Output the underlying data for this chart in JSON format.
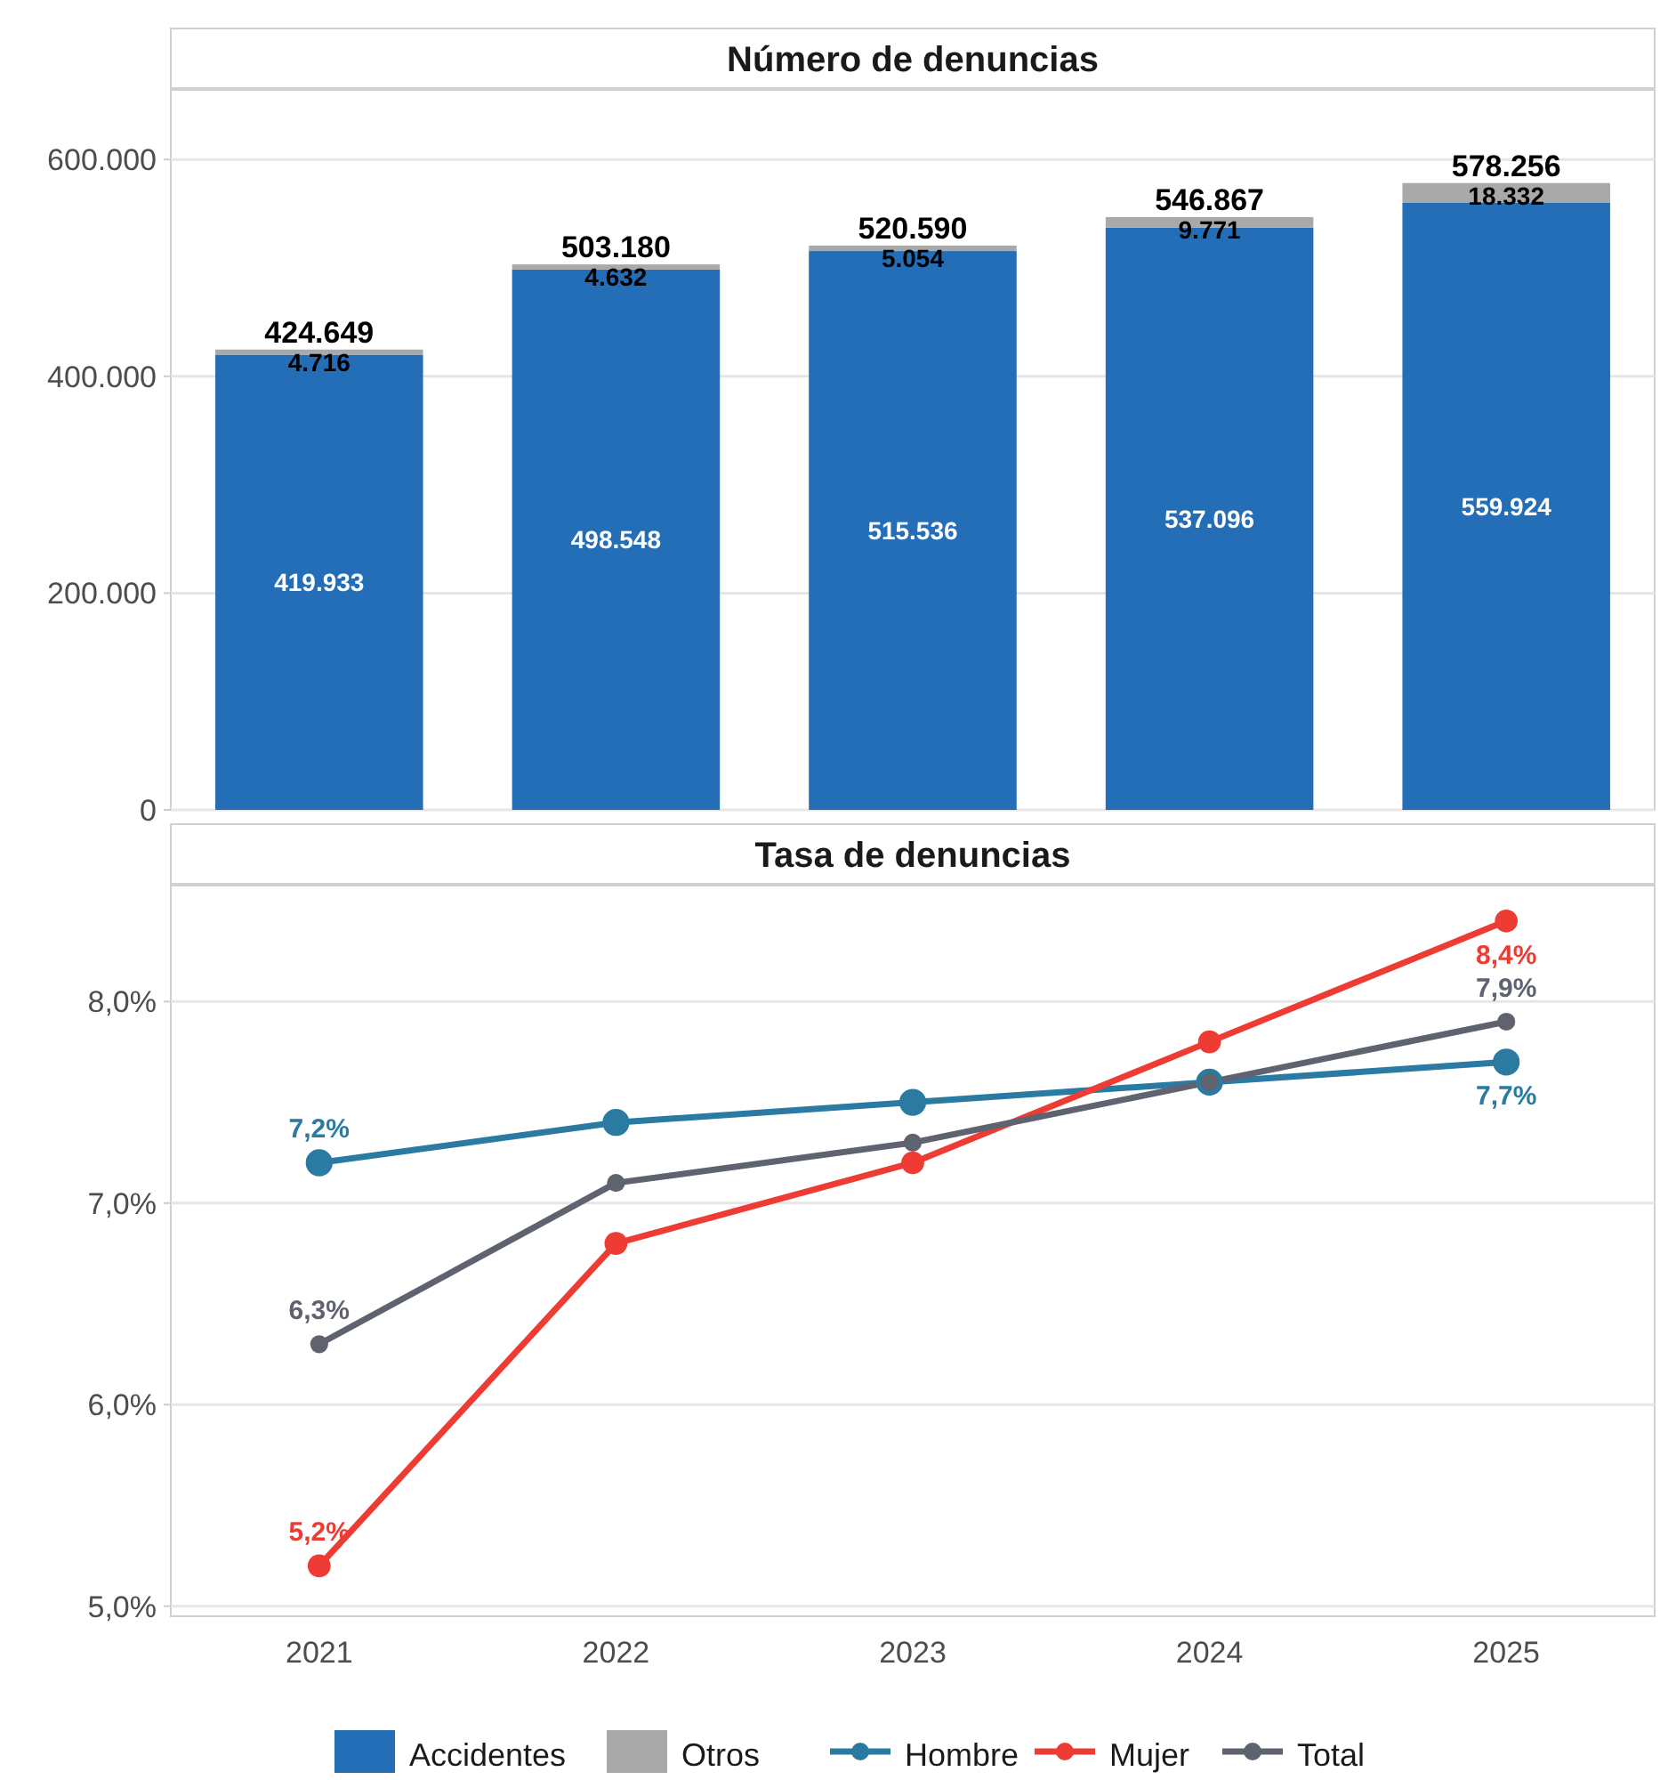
{
  "chart_data": [
    {
      "type": "bar",
      "title": "Número de denuncias",
      "stacked": true,
      "categories": [
        "2021",
        "2022",
        "2023",
        "2024",
        "2025"
      ],
      "series": [
        {
          "name": "Accidentes",
          "color": "#236eb7",
          "values": [
            419933,
            498548,
            515536,
            537096,
            559924
          ],
          "value_labels": [
            "419.933",
            "498.548",
            "515.536",
            "537.096",
            "559.924"
          ]
        },
        {
          "name": "Otros",
          "color": "#a9a9a9",
          "values": [
            4716,
            4632,
            5054,
            9771,
            18332
          ],
          "value_labels": [
            "4.716",
            "4.632",
            "5.054",
            "9.771",
            "18.332"
          ]
        }
      ],
      "totals": [
        "424.649",
        "503.180",
        "520.590",
        "546.867",
        "578.256"
      ],
      "ylim": [
        0,
        665000
      ],
      "yticks": [
        {
          "value": 0,
          "label": "0"
        },
        {
          "value": 200000,
          "label": "200.000"
        },
        {
          "value": 400000,
          "label": "400.000"
        },
        {
          "value": 600000,
          "label": "600.000"
        }
      ],
      "grid": "y",
      "legend": "bottom",
      "tick_labels": "y"
    },
    {
      "type": "line",
      "title": "Tasa de denuncias",
      "categories": [
        "2021",
        "2022",
        "2023",
        "2024",
        "2025"
      ],
      "series": [
        {
          "name": "Hombre",
          "color": "#2a7aa1",
          "values": [
            7.2,
            7.4,
            7.5,
            7.6,
            7.7
          ],
          "value_labels": [
            "7,2%",
            null,
            null,
            null,
            "7,7%"
          ]
        },
        {
          "name": "Mujer",
          "color": "#ee3b33",
          "values": [
            5.2,
            6.8,
            7.2,
            7.8,
            8.4
          ],
          "value_labels": [
            "5,2%",
            null,
            null,
            null,
            "8,4%"
          ]
        },
        {
          "name": "Total",
          "color": "#5f6370",
          "values": [
            6.3,
            7.1,
            7.3,
            7.6,
            7.9
          ],
          "value_labels": [
            "6,3%",
            null,
            null,
            null,
            "7,9%"
          ]
        }
      ],
      "ylim": [
        4.95,
        8.58
      ],
      "yticks": [
        {
          "value": 5,
          "label": "5,0%"
        },
        {
          "value": 6,
          "label": "6,0%"
        },
        {
          "value": 7,
          "label": "7,0%"
        },
        {
          "value": 8,
          "label": "8,0%"
        }
      ],
      "grid": "y",
      "legend": "bottom",
      "marker": "circle",
      "line_style": "solid"
    }
  ]
}
